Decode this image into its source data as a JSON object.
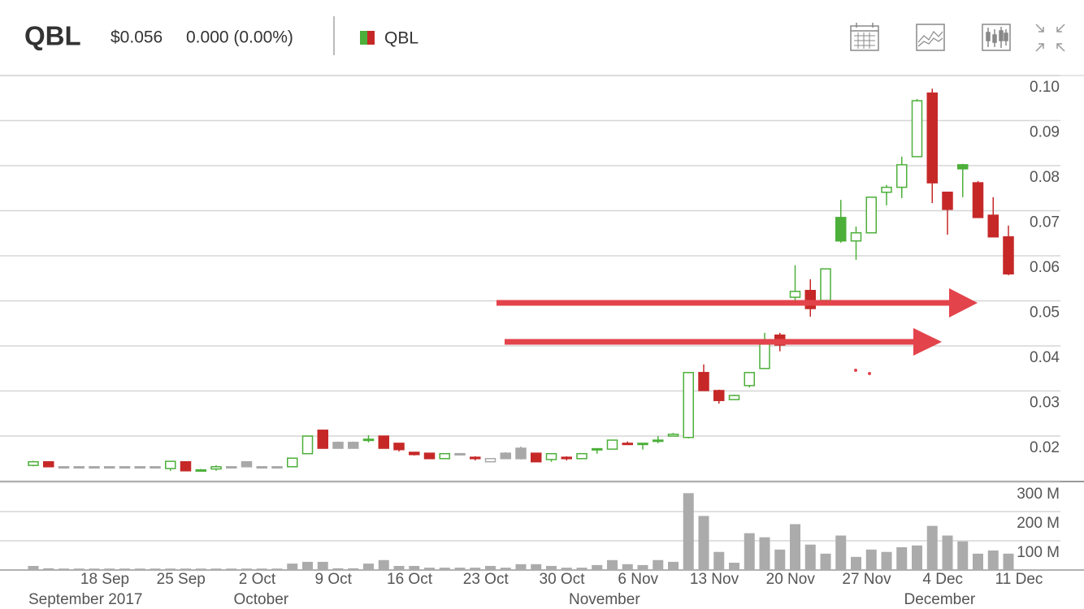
{
  "chart_data": {
    "type": "candlestick",
    "title": "QBL",
    "price": "$0.056",
    "change": "0.000 (0.00%)",
    "grid": true,
    "categories": [
      null,
      null,
      null,
      null,
      "18 Sep",
      null,
      null,
      null,
      null,
      "25 Sep",
      null,
      null,
      null,
      null,
      "2 Oct",
      null,
      null,
      null,
      null,
      "9 Oct",
      null,
      null,
      null,
      null,
      "16 Oct",
      null,
      null,
      null,
      null,
      "23 Oct",
      null,
      null,
      null,
      null,
      "30 Oct",
      null,
      null,
      null,
      null,
      "6 Nov",
      null,
      null,
      null,
      null,
      "13 Nov",
      null,
      null,
      null,
      null,
      "20 Nov",
      null,
      null,
      null,
      null,
      "27 Nov",
      null,
      null,
      null,
      null,
      "4 Dec",
      null,
      null,
      null,
      null,
      "11 Dec"
    ],
    "months": [
      "September 2017",
      null,
      null,
      null,
      null,
      null,
      null,
      null,
      null,
      null,
      null,
      null,
      null,
      null,
      "October",
      null,
      null,
      null,
      null,
      null,
      null,
      null,
      null,
      null,
      null,
      null,
      null,
      null,
      null,
      null,
      null,
      null,
      null,
      null,
      null,
      null,
      "November",
      null,
      null,
      null,
      null,
      null,
      null,
      null,
      null,
      null,
      null,
      null,
      null,
      null,
      null,
      null,
      null,
      null,
      null,
      null,
      null,
      null,
      "December",
      null,
      null,
      null,
      null,
      null,
      null
    ],
    "ylim": [
      0.0101,
      0.1
    ],
    "yticks": [
      0.02,
      0.03,
      0.04,
      0.05,
      0.06,
      0.07,
      0.08,
      0.09,
      {
        "value": 0.1,
        "label": "0.10"
      }
    ],
    "series": [
      {
        "name": "QBL",
        "up_color": "#4caf3a",
        "down_color": "#c62828",
        "flat_color": "#a8a8a8",
        "open": [
          0.0135,
          0.0143,
          0.0132,
          0.0132,
          0.0132,
          0.0132,
          0.0132,
          0.0132,
          0.0132,
          0.0128,
          0.0143,
          0.0125,
          0.0127,
          0.0132,
          0.0143,
          0.0132,
          0.0132,
          0.0132,
          0.0161,
          0.0213,
          0.0186,
          0.0186,
          0.0191,
          0.02,
          0.0184,
          0.0164,
          0.0162,
          0.015,
          0.0161,
          0.0153,
          0.0143,
          0.0162,
          0.0173,
          0.0162,
          0.0148,
          0.0153,
          0.015,
          0.017,
          0.0171,
          0.0184,
          0.0184,
          0.0189,
          0.02,
          0.0197,
          0.0341,
          0.0301,
          0.0281,
          0.0312,
          0.035,
          0.0424,
          0.0508,
          0.0523,
          0.0501,
          0.0685,
          0.0633,
          0.0651,
          0.0741,
          0.0752,
          0.082,
          0.0961,
          0.0741,
          0.0802,
          0.0762,
          0.069,
          0.0642
        ],
        "high": [
          0.0145,
          0.0143,
          0.0132,
          0.0132,
          0.0132,
          0.0132,
          0.0132,
          0.0132,
          0.0132,
          0.0145,
          0.0143,
          0.0127,
          0.0135,
          0.0132,
          0.0143,
          0.0132,
          0.0132,
          0.0151,
          0.02,
          0.0213,
          0.0188,
          0.0188,
          0.0202,
          0.02,
          0.0184,
          0.0164,
          0.0162,
          0.0161,
          0.0162,
          0.0155,
          0.015,
          0.0164,
          0.0177,
          0.0162,
          0.0161,
          0.0155,
          0.0161,
          0.0173,
          0.0191,
          0.0188,
          0.0184,
          0.02,
          0.0207,
          0.0341,
          0.0359,
          0.0303,
          0.0292,
          0.0341,
          0.0429,
          0.0429,
          0.0579,
          0.0548,
          0.0571,
          0.0724,
          0.0665,
          0.073,
          0.0757,
          0.082,
          0.0948,
          0.0971,
          0.0741,
          0.0804,
          0.0766,
          0.073,
          0.0667
        ],
        "low": [
          0.0133,
          0.0132,
          0.0132,
          0.0132,
          0.0132,
          0.0132,
          0.0132,
          0.0132,
          0.0132,
          0.0123,
          0.0123,
          0.0123,
          0.0123,
          0.0132,
          0.0132,
          0.0132,
          0.0132,
          0.0132,
          0.0161,
          0.0173,
          0.0173,
          0.0173,
          0.0186,
          0.0173,
          0.0166,
          0.0157,
          0.015,
          0.015,
          0.0157,
          0.0146,
          0.0143,
          0.015,
          0.0148,
          0.0143,
          0.0143,
          0.0146,
          0.015,
          0.0161,
          0.017,
          0.0182,
          0.017,
          0.0184,
          0.02,
          0.0195,
          0.0301,
          0.0272,
          0.0281,
          0.0308,
          0.035,
          0.0388,
          0.0501,
          0.0465,
          0.0501,
          0.0629,
          0.0591,
          0.0651,
          0.0712,
          0.0728,
          0.082,
          0.0717,
          0.0647,
          0.073,
          0.0685,
          0.0642,
          0.0557
        ],
        "close": [
          0.0143,
          0.0132,
          0.0132,
          0.0132,
          0.0132,
          0.0132,
          0.0132,
          0.0132,
          0.0132,
          0.0144,
          0.0123,
          0.0125,
          0.0132,
          0.0132,
          0.0132,
          0.0132,
          0.0132,
          0.0151,
          0.02,
          0.0173,
          0.0173,
          0.0173,
          0.0193,
          0.0173,
          0.017,
          0.0159,
          0.015,
          0.0161,
          0.0161,
          0.015,
          0.015,
          0.015,
          0.015,
          0.0143,
          0.0161,
          0.015,
          0.0161,
          0.0172,
          0.0191,
          0.0182,
          0.0184,
          0.0191,
          0.0204,
          0.0341,
          0.0301,
          0.0279,
          0.029,
          0.0341,
          0.0404,
          0.0402,
          0.0521,
          0.0483,
          0.0571,
          0.0633,
          0.0651,
          0.073,
          0.0752,
          0.0802,
          0.0944,
          0.0762,
          0.0703,
          0.0793,
          0.0685,
          0.0642,
          0.056
        ]
      }
    ],
    "volume": {
      "color": "#ababab",
      "ylim": [
        0,
        300000000
      ],
      "yticks": [
        {
          "value": 100000000,
          "label": "100 M"
        },
        {
          "value": 200000000,
          "label": "200 M"
        },
        {
          "value": 300000000,
          "label": "300 M"
        }
      ],
      "values": [
        14000000,
        6000000,
        5000000,
        5000000,
        5000000,
        5000000,
        5000000,
        5000000,
        5000000,
        5000000,
        5000000,
        5000000,
        5000000,
        5000000,
        5000000,
        5000000,
        5000000,
        22000000,
        28000000,
        28000000,
        6000000,
        6000000,
        22000000,
        34000000,
        14000000,
        14000000,
        8000000,
        8000000,
        8000000,
        8000000,
        14000000,
        8000000,
        20000000,
        20000000,
        14000000,
        8000000,
        8000000,
        17000000,
        34000000,
        20000000,
        17000000,
        34000000,
        28000000,
        263000000,
        185000000,
        62000000,
        25000000,
        126000000,
        112000000,
        70000000,
        157000000,
        87000000,
        56000000,
        118000000,
        45000000,
        70000000,
        62000000,
        78000000,
        84000000,
        151000000,
        118000000,
        98000000,
        56000000,
        67000000,
        56000000
      ]
    }
  }
}
